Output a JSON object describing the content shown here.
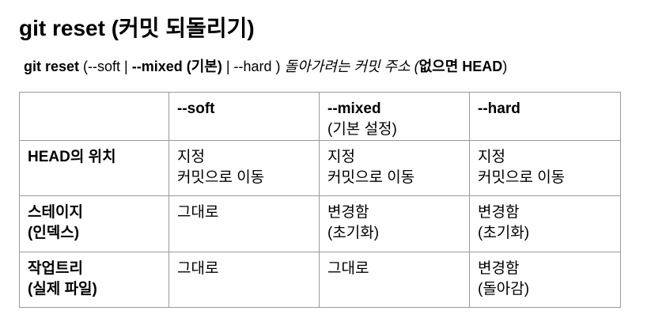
{
  "title": "git reset (커밋 되돌리기)",
  "syntax": {
    "cmd": "git reset",
    "open": " (--soft | ",
    "mixed": "--mixed (기본)",
    "sep": " | --hard ) ",
    "desc": "돌아가려는 커밋 주소 (",
    "empty": "없으면 HEAD",
    "close": ")"
  },
  "table": {
    "columns": [
      {
        "label": "--soft",
        "sub": ""
      },
      {
        "label": "--mixed",
        "sub": "(기본 설정)"
      },
      {
        "label": "--hard",
        "sub": ""
      }
    ],
    "rows": [
      {
        "head": [
          "HEAD의 위치",
          ""
        ],
        "cells": [
          [
            "지정",
            "커밋으로 이동"
          ],
          [
            "지정",
            "커밋으로 이동"
          ],
          [
            "지정",
            "커밋으로 이동"
          ]
        ]
      },
      {
        "head": [
          "스테이지",
          "(인덱스)"
        ],
        "cells": [
          [
            "그대로",
            ""
          ],
          [
            "변경함",
            "(초기화)"
          ],
          [
            "변경함",
            "(초기화)"
          ]
        ]
      },
      {
        "head": [
          "작업트리",
          "(실제 파일)"
        ],
        "cells": [
          [
            "그대로",
            ""
          ],
          [
            "그대로",
            ""
          ],
          [
            "변경함",
            "(돌아감)"
          ]
        ]
      }
    ]
  }
}
